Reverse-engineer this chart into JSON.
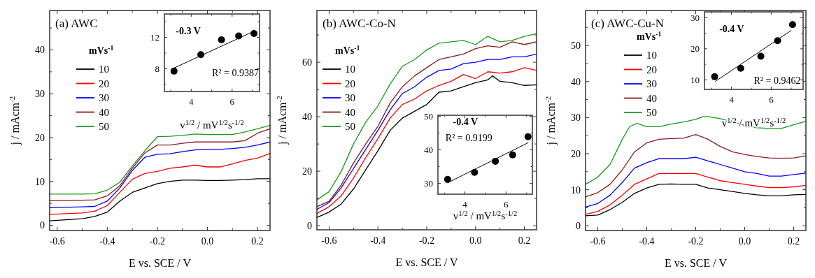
{
  "chart_data": [
    {
      "type": "line",
      "title": "(a) AWC",
      "xlabel": "E vs. SCE / V",
      "ylabel": "j / mAcm$^{-2}$",
      "legend_title": "mVs$^{-1}$",
      "legend": "top left",
      "xlim": [
        -0.63,
        0.25
      ],
      "ylim": [
        -1.2,
        49
      ],
      "xticks": [
        -0.6,
        {
          "value": -0.5,
          "label": null
        },
        -0.4,
        {
          "value": -0.3,
          "label": null
        },
        -0.2,
        {
          "value": -0.1,
          "label": null
        },
        {
          "value": 0,
          "label": "0.0"
        },
        {
          "value": 0.1,
          "label": null
        },
        0.2
      ],
      "yticks": [
        0,
        {
          "value": 5,
          "label": null
        },
        10,
        {
          "value": 15,
          "label": null
        },
        20,
        {
          "value": 25,
          "label": null
        },
        30,
        {
          "value": 35,
          "label": null
        },
        40,
        {
          "value": 45,
          "label": null
        }
      ],
      "x": [
        -0.63,
        -0.5,
        -0.45,
        -0.4,
        -0.35,
        -0.3,
        -0.25,
        -0.2,
        -0.15,
        -0.1,
        -0.05,
        0,
        0.05,
        0.1,
        0.15,
        0.2,
        0.25
      ],
      "series": [
        {
          "name": "10",
          "color": "#000000",
          "values": [
            1,
            1.5,
            2,
            3,
            5.5,
            7.5,
            8.5,
            9.5,
            10,
            10.3,
            10.3,
            10.2,
            10.2,
            10.3,
            10.4,
            10.6,
            10.6
          ]
        },
        {
          "name": "20",
          "color": "#ff0000",
          "values": [
            2.5,
            2.8,
            3.2,
            4.5,
            7.5,
            10.5,
            11.8,
            12.3,
            13,
            13.3,
            13.7,
            13.3,
            13.3,
            14,
            14.8,
            15.3,
            16.4
          ]
        },
        {
          "name": "30",
          "color": "#0000ff",
          "values": [
            4,
            4.2,
            4.3,
            5.5,
            8.5,
            12.5,
            15.5,
            16.2,
            16.3,
            16.8,
            17.2,
            17.3,
            17.3,
            17.5,
            17.8,
            18.3,
            19
          ]
        },
        {
          "name": "40",
          "color": "#8b1a1a",
          "values": [
            5.6,
            5.7,
            5.8,
            6.7,
            9,
            13,
            16.5,
            18.3,
            18.3,
            18.7,
            19,
            19,
            19,
            19,
            19.3,
            21,
            22
          ]
        },
        {
          "name": "50",
          "color": "#1a9a1a",
          "values": [
            7.1,
            7.1,
            7.2,
            8,
            9.8,
            13.5,
            17,
            20.2,
            20.3,
            20.5,
            20.8,
            20.7,
            20.7,
            20.7,
            21.3,
            22,
            22.8
          ]
        }
      ]
    },
    {
      "type": "scatter",
      "xlabel": "v$^{1/2}$ / mV$^{1/2}$s$^{-1/2}$",
      "annotations": [
        "-0.3 V",
        "R² = 0.9387"
      ],
      "xlim": [
        2.69,
        7.34
      ],
      "ylim": [
        5.1,
        15
      ],
      "xticks": [
        {
          "value": 3,
          "label": null
        },
        4,
        {
          "value": 5,
          "label": null
        },
        6,
        {
          "value": 7,
          "label": null
        }
      ],
      "yticks": [
        {
          "value": 6,
          "label": null
        },
        8,
        {
          "value": 10,
          "label": null
        },
        12,
        {
          "value": 14,
          "label": null
        }
      ],
      "series": [
        {
          "marker": "circle",
          "color": "#000000",
          "x": [
            3.16,
            4.47,
            5.48,
            6.32,
            7.07
          ],
          "values": [
            7.7,
            9.8,
            11.7,
            12.2,
            12.5
          ]
        },
        {
          "type": "line",
          "marker": "none",
          "color": "#000000",
          "x": [
            3.16,
            7.07
          ],
          "values": [
            8.1,
            12.8
          ]
        }
      ]
    },
    {
      "type": "line",
      "title": "(b) AWC-Co-N",
      "xlabel": "E vs. SCE / V",
      "ylabel": "j / mAcm$^{-2}$",
      "legend_title": "mVs$^{-1}$",
      "legend": "top left",
      "xlim": [
        -0.65,
        0.25
      ],
      "ylim": [
        -1.5,
        79
      ],
      "xticks": [
        -0.6,
        {
          "value": -0.5,
          "label": null
        },
        -0.4,
        {
          "value": -0.3,
          "label": null
        },
        -0.2,
        {
          "value": -0.1,
          "label": null
        },
        {
          "value": 0,
          "label": "0.0"
        },
        {
          "value": 0.1,
          "label": null
        },
        0.2
      ],
      "yticks": [
        0,
        {
          "value": 10,
          "label": null
        },
        20,
        {
          "value": 30,
          "label": null
        },
        40,
        {
          "value": 50,
          "label": null
        },
        60,
        {
          "value": 70,
          "label": null
        }
      ],
      "x": [
        -0.65,
        -0.6,
        -0.55,
        -0.5,
        -0.45,
        -0.4,
        -0.35,
        -0.3,
        -0.25,
        -0.2,
        -0.15,
        -0.1,
        -0.05,
        0,
        0.05,
        0.1,
        0.15,
        0.2,
        0.25
      ],
      "series": [
        {
          "name": "10",
          "color": "#000000",
          "x": [
            -0.65,
            -0.6,
            -0.55,
            -0.5,
            -0.45,
            -0.4,
            -0.35,
            -0.3,
            -0.25,
            -0.2,
            -0.15,
            -0.1,
            -0.05,
            0,
            0.05,
            0.07,
            0.1,
            0.15,
            0.2,
            0.25
          ],
          "values": [
            3,
            5,
            8,
            13.5,
            20.5,
            27.5,
            35,
            39.5,
            42,
            44.5,
            49,
            49.5,
            51,
            52.5,
            53.5,
            55,
            53,
            52.5,
            51.5,
            51.7
          ]
        },
        {
          "name": "20",
          "color": "#ff0000",
          "values": [
            4.5,
            7,
            11,
            17.5,
            25,
            32,
            39.5,
            44.5,
            46.5,
            49.5,
            51.5,
            53,
            55.5,
            54,
            56.5,
            56,
            56.5,
            58,
            57
          ]
        },
        {
          "name": "30",
          "color": "#0000ff",
          "values": [
            6,
            8.5,
            14,
            21,
            28,
            35,
            42.5,
            48.5,
            51,
            54.5,
            57,
            57.5,
            59.5,
            60,
            61,
            61,
            62,
            62,
            63
          ]
        },
        {
          "name": "40",
          "color": "#8b1a1a",
          "values": [
            7,
            9,
            15,
            23,
            30,
            36.5,
            45,
            51,
            55,
            58,
            61,
            62,
            63,
            65,
            66,
            65.5,
            67.5,
            66.5,
            67.5
          ]
        },
        {
          "name": "50",
          "color": "#1a9a1a",
          "values": [
            9.5,
            12.5,
            20,
            30,
            38,
            44,
            52,
            58.5,
            61,
            64.5,
            67,
            67.5,
            68,
            66.5,
            69.5,
            67.5,
            68,
            69.5,
            70.5
          ]
        }
      ]
    },
    {
      "type": "scatter",
      "xlabel": "v$^{1/2}$ / mV$^{1/2}$s$^{-1/2}$",
      "annotations": [
        "-0.4 V",
        "R² = 0.9199"
      ],
      "xlim": [
        2.69,
        7.28
      ],
      "ylim": [
        26.8,
        50.3
      ],
      "xticks": [
        {
          "value": 3,
          "label": null
        },
        4,
        {
          "value": 5,
          "label": null
        },
        6,
        {
          "value": 7,
          "label": null
        }
      ],
      "yticks": [
        30,
        {
          "value": 35,
          "label": null
        },
        40,
        {
          "value": 45,
          "label": null
        },
        50
      ],
      "series": [
        {
          "marker": "circle",
          "color": "#000000",
          "x": [
            3.16,
            4.47,
            5.48,
            6.32,
            7.07
          ],
          "values": [
            31.2,
            33.3,
            36.6,
            38.5,
            43.9
          ]
        },
        {
          "type": "line",
          "marker": "none",
          "color": "#000000",
          "x": [
            3.16,
            7.07
          ],
          "values": [
            30.2,
            42.1
          ]
        }
      ]
    },
    {
      "type": "line",
      "title": "(c) AWC-Cu-N",
      "xlabel": "E vs. SCE / V",
      "ylabel": "j / mAcm$^{-2}$",
      "legend_title": "mVs$^{-1}$",
      "legend": "top left",
      "xlim": [
        -0.65,
        0.25
      ],
      "ylim": [
        -1.3,
        59.7
      ],
      "xticks": [
        -0.6,
        {
          "value": -0.5,
          "label": null
        },
        -0.4,
        {
          "value": -0.3,
          "label": null
        },
        -0.2,
        {
          "value": -0.1,
          "label": null
        },
        {
          "value": 0,
          "label": "0.0"
        },
        {
          "value": 0.1,
          "label": null
        },
        0.2
      ],
      "yticks": [
        0,
        {
          "value": 5,
          "label": null
        },
        10,
        {
          "value": 15,
          "label": null
        },
        20,
        {
          "value": 25,
          "label": null
        },
        30,
        {
          "value": 35,
          "label": null
        },
        40,
        {
          "value": 45,
          "label": null
        },
        50,
        {
          "value": 55,
          "label": null
        }
      ],
      "x": [
        -0.65,
        -0.6,
        -0.55,
        -0.5,
        -0.45,
        -0.4,
        -0.35,
        -0.3,
        -0.25,
        -0.2,
        -0.15,
        -0.1,
        -0.05,
        0,
        0.05,
        0.1,
        0.15,
        0.2,
        0.25
      ],
      "series": [
        {
          "name": "10",
          "color": "#000000",
          "values": [
            2.8,
            3,
            4.5,
            6.5,
            9,
            10.5,
            11.5,
            11.6,
            11.5,
            11.5,
            10.5,
            10,
            9.5,
            9,
            8.6,
            8.3,
            8.3,
            8.6,
            8.7
          ]
        },
        {
          "name": "20",
          "color": "#ff0000",
          "values": [
            3.2,
            4,
            5.8,
            8.5,
            11.5,
            13,
            14.5,
            14.5,
            14.5,
            14.5,
            13.5,
            12.5,
            12,
            11.5,
            11,
            10.6,
            10.6,
            10.8,
            11.2
          ]
        },
        {
          "name": "30",
          "color": "#0000ff",
          "values": [
            5.2,
            6.2,
            8.5,
            12,
            16,
            17.5,
            18.6,
            18.6,
            18.6,
            19,
            18,
            17,
            16,
            15,
            14.5,
            13.8,
            13.8,
            14.2,
            14.6
          ]
        },
        {
          "name": "40",
          "color": "#8b1a1a",
          "values": [
            8,
            9.2,
            11.5,
            15.5,
            20.5,
            23,
            24,
            24.2,
            24.3,
            25.3,
            24,
            22,
            20.5,
            19.8,
            19.2,
            18.8,
            18.7,
            18.8,
            19.4
          ]
        },
        {
          "name": "50",
          "color": "#1a9a1a",
          "x": [
            -0.65,
            -0.6,
            -0.55,
            -0.5,
            -0.47,
            -0.44,
            -0.4,
            -0.35,
            -0.3,
            -0.25,
            -0.2,
            -0.17,
            -0.15,
            -0.1,
            -0.05,
            0,
            0.05,
            0.1,
            0.15,
            0.2,
            0.25
          ],
          "values": [
            11.5,
            13.5,
            17,
            24,
            27.5,
            28.4,
            27.5,
            27.5,
            28.2,
            28.8,
            29.5,
            30.3,
            30.3,
            29.7,
            28.8,
            27.8,
            27.2,
            27,
            27,
            28,
            29
          ]
        }
      ]
    },
    {
      "type": "scatter",
      "xlabel": "v$^{1/2}$ / mV$^{1/2}$s$^{-1/2}$",
      "annotations": [
        "-0.4 V",
        "R² = 0.9462"
      ],
      "xlim": [
        2.65,
        7.6
      ],
      "ylim": [
        6.9,
        31.9
      ],
      "xticks": [
        {
          "value": 3,
          "label": null
        },
        4,
        {
          "value": 5,
          "label": null
        },
        6,
        {
          "value": 7,
          "label": null
        }
      ],
      "yticks": [
        10,
        {
          "value": 15,
          "label": null
        },
        20,
        {
          "value": 25,
          "label": null
        },
        30
      ],
      "series": [
        {
          "marker": "circle",
          "color": "#000000",
          "x": [
            3.16,
            4.47,
            5.48,
            6.32,
            7.07
          ],
          "values": [
            11,
            13.7,
            17.6,
            22.6,
            27.8
          ]
        },
        {
          "type": "line",
          "marker": "none",
          "color": "#000000",
          "x": [
            3.2,
            7
          ],
          "values": [
            9.5,
            25.9
          ]
        }
      ]
    }
  ]
}
